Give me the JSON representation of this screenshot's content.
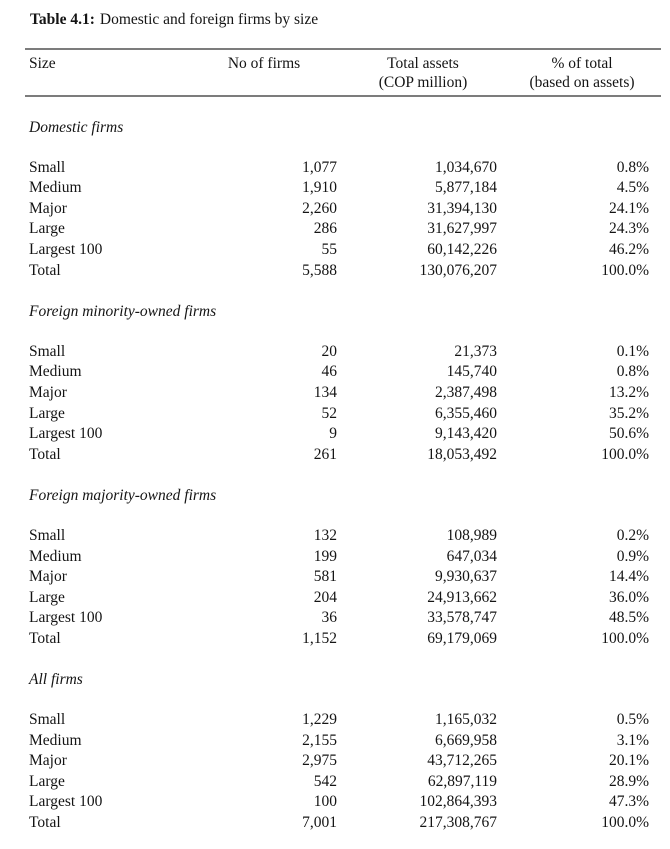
{
  "title": {
    "label": "Table 4.1:",
    "caption": "Domestic and foreign firms by size"
  },
  "table": {
    "columns": [
      {
        "line1": "Size",
        "line2": ""
      },
      {
        "line1": "No of firms",
        "line2": ""
      },
      {
        "line1": "Total assets",
        "line2": "(COP million)"
      },
      {
        "line1": "% of total",
        "line2": "(based on assets)"
      }
    ],
    "sections": [
      {
        "name": "Domestic firms",
        "rows": [
          {
            "size": "Small",
            "firms": "1,077",
            "assets": "1,034,670",
            "pct": "0.8%"
          },
          {
            "size": "Medium",
            "firms": "1,910",
            "assets": "5,877,184",
            "pct": "4.5%"
          },
          {
            "size": "Major",
            "firms": "2,260",
            "assets": "31,394,130",
            "pct": "24.1%"
          },
          {
            "size": "Large",
            "firms": "286",
            "assets": "31,627,997",
            "pct": "24.3%"
          },
          {
            "size": "Largest 100",
            "firms": "55",
            "assets": "60,142,226",
            "pct": "46.2%"
          },
          {
            "size": "Total",
            "firms": "5,588",
            "assets": "130,076,207",
            "pct": "100.0%"
          }
        ]
      },
      {
        "name": "Foreign minority-owned firms",
        "rows": [
          {
            "size": "Small",
            "firms": "20",
            "assets": "21,373",
            "pct": "0.1%"
          },
          {
            "size": "Medium",
            "firms": "46",
            "assets": "145,740",
            "pct": "0.8%"
          },
          {
            "size": "Major",
            "firms": "134",
            "assets": "2,387,498",
            "pct": "13.2%"
          },
          {
            "size": "Large",
            "firms": "52",
            "assets": "6,355,460",
            "pct": "35.2%"
          },
          {
            "size": "Largest 100",
            "firms": "9",
            "assets": "9,143,420",
            "pct": "50.6%"
          },
          {
            "size": "Total",
            "firms": "261",
            "assets": "18,053,492",
            "pct": "100.0%"
          }
        ]
      },
      {
        "name": "Foreign majority-owned firms",
        "rows": [
          {
            "size": "Small",
            "firms": "132",
            "assets": "108,989",
            "pct": "0.2%"
          },
          {
            "size": "Medium",
            "firms": "199",
            "assets": "647,034",
            "pct": "0.9%"
          },
          {
            "size": "Major",
            "firms": "581",
            "assets": "9,930,637",
            "pct": "14.4%"
          },
          {
            "size": "Large",
            "firms": "204",
            "assets": "24,913,662",
            "pct": "36.0%"
          },
          {
            "size": "Largest 100",
            "firms": "36",
            "assets": "33,578,747",
            "pct": "48.5%"
          },
          {
            "size": "Total",
            "firms": "1,152",
            "assets": "69,179,069",
            "pct": "100.0%"
          }
        ]
      },
      {
        "name": "All firms",
        "rows": [
          {
            "size": "Small",
            "firms": "1,229",
            "assets": "1,165,032",
            "pct": "0.5%"
          },
          {
            "size": "Medium",
            "firms": "2,155",
            "assets": "6,669,958",
            "pct": "3.1%"
          },
          {
            "size": "Major",
            "firms": "2,975",
            "assets": "43,712,265",
            "pct": "20.1%"
          },
          {
            "size": "Large",
            "firms": "542",
            "assets": "62,897,119",
            "pct": "28.9%"
          },
          {
            "size": "Largest 100",
            "firms": "100",
            "assets": "102,864,393",
            "pct": "47.3%"
          },
          {
            "size": "Total",
            "firms": "7,001",
            "assets": "217,308,767",
            "pct": "100.0%"
          }
        ]
      }
    ]
  },
  "style": {
    "rule_color": "#7c7c7c",
    "text_color": "#141414",
    "background_color": "#ffffff"
  }
}
